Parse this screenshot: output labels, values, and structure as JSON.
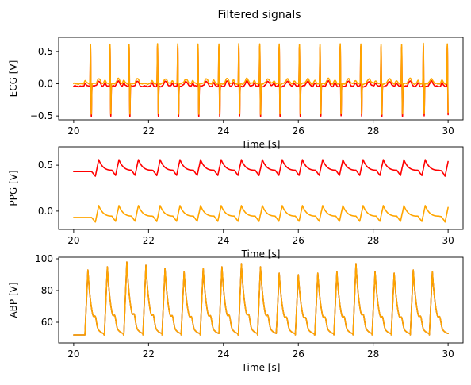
{
  "figure": {
    "suptitle": "Filtered signals"
  },
  "colors": {
    "series_red": "#ff0000",
    "series_orange": "#ffa500",
    "series_dark": "#8b1a00"
  },
  "chart_data": [
    {
      "type": "line",
      "signal": "ecg",
      "xlabel": "Time [s]",
      "ylabel": "ECG [V]",
      "xlim": [
        19.6,
        30.4
      ],
      "ylim": [
        -0.56,
        0.72
      ],
      "xticks": [
        20,
        22,
        24,
        26,
        28,
        30
      ],
      "yticks": [
        -0.5,
        0.0,
        0.5
      ],
      "ytick_labels": [
        "−0.5",
        "0.0",
        "0.5"
      ],
      "beats": [
        20.45,
        20.97,
        21.48,
        22.24,
        22.78,
        23.32,
        23.88,
        24.41,
        24.97,
        25.49,
        26.03,
        26.58,
        27.12,
        27.67,
        28.21,
        28.76,
        29.34,
        29.98
      ],
      "peak": 0.62,
      "trough": -0.47,
      "series": [
        {
          "color": "#ff0000",
          "baseline": -0.04
        },
        {
          "color": "#ffa500",
          "baseline": 0.0
        }
      ]
    },
    {
      "type": "line",
      "signal": "ppg",
      "xlabel": "Time [s]",
      "ylabel": "PPG [V]",
      "xlim": [
        19.6,
        30.4
      ],
      "ylim": [
        -0.2,
        0.7
      ],
      "xticks": [
        20,
        22,
        24,
        26,
        28,
        30
      ],
      "yticks": [
        0.0,
        0.5
      ],
      "ytick_labels": [
        "0.0",
        "0.5"
      ],
      "beats": [
        20.58,
        21.12,
        21.64,
        22.22,
        22.75,
        23.3,
        23.85,
        24.39,
        24.95,
        25.48,
        26.02,
        26.56,
        27.1,
        27.64,
        28.18,
        28.73,
        29.3,
        29.92
      ],
      "series": [
        {
          "color": "#ff0000",
          "base": 0.43,
          "amp": 0.17
        },
        {
          "color": "#ffa500",
          "base": -0.07,
          "amp": 0.17
        }
      ]
    },
    {
      "type": "line",
      "signal": "abp",
      "xlabel": "Time [s]",
      "ylabel": "ABP [V]",
      "xlim": [
        19.6,
        30.4
      ],
      "ylim": [
        47,
        101
      ],
      "xticks": [
        20,
        22,
        24,
        26,
        28,
        30
      ],
      "yticks": [
        60,
        80,
        100
      ],
      "ytick_labels": [
        "60",
        "80",
        "100"
      ],
      "beats": [
        20.3,
        20.82,
        21.34,
        21.85,
        22.36,
        22.87,
        23.38,
        23.88,
        24.4,
        24.91,
        25.41,
        25.92,
        26.44,
        26.95,
        27.46,
        27.97,
        28.48,
        28.99,
        29.5
      ],
      "systolic": [
        93,
        95,
        98,
        96,
        94,
        92,
        94,
        95,
        97,
        95,
        91,
        90,
        91,
        92,
        97,
        92,
        91,
        93,
        92
      ],
      "diastolic": 52,
      "series": [
        {
          "color": "#8b1a00"
        },
        {
          "color": "#ffa500"
        }
      ]
    }
  ]
}
